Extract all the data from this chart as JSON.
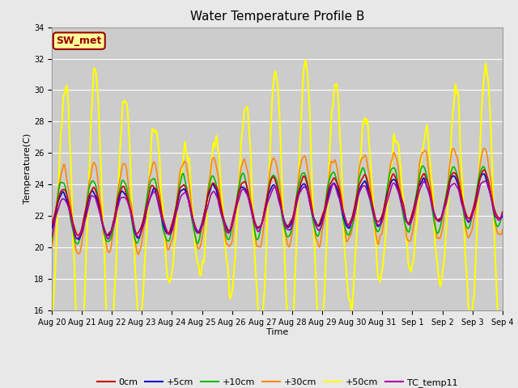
{
  "title": "Water Temperature Profile B",
  "xlabel": "Time",
  "ylabel": "Temperature(C)",
  "ylim": [
    16,
    34
  ],
  "n_days": 15,
  "x_tick_labels": [
    "Aug 20",
    "Aug 21",
    "Aug 22",
    "Aug 23",
    "Aug 24",
    "Aug 25",
    "Aug 26",
    "Aug 27",
    "Aug 28",
    "Aug 29",
    "Aug 30",
    "Aug 31",
    "Sep 1",
    "Sep 2",
    "Sep 3",
    "Sep 4"
  ],
  "fig_bg_color": "#e8e8e8",
  "plot_bg_color": "#cccccc",
  "grid_color": "#ffffff",
  "annotation_text": "SW_met",
  "annotation_bg": "#ffff99",
  "annotation_border": "#990000",
  "annotation_text_color": "#990000",
  "series": {
    "0cm": {
      "color": "#cc0000",
      "lw": 1.2
    },
    "+5cm": {
      "color": "#0000cc",
      "lw": 1.2
    },
    "+10cm": {
      "color": "#00bb00",
      "lw": 1.2
    },
    "+30cm": {
      "color": "#ff8800",
      "lw": 1.2
    },
    "+50cm": {
      "color": "#ffff00",
      "lw": 1.5
    },
    "TC_temp11": {
      "color": "#aa00aa",
      "lw": 1.2
    }
  },
  "legend_order": [
    "0cm",
    "+5cm",
    "+10cm",
    "+30cm",
    "+50cm",
    "TC_temp11"
  ],
  "title_fontsize": 11,
  "label_fontsize": 8,
  "tick_fontsize": 7,
  "legend_fontsize": 8
}
